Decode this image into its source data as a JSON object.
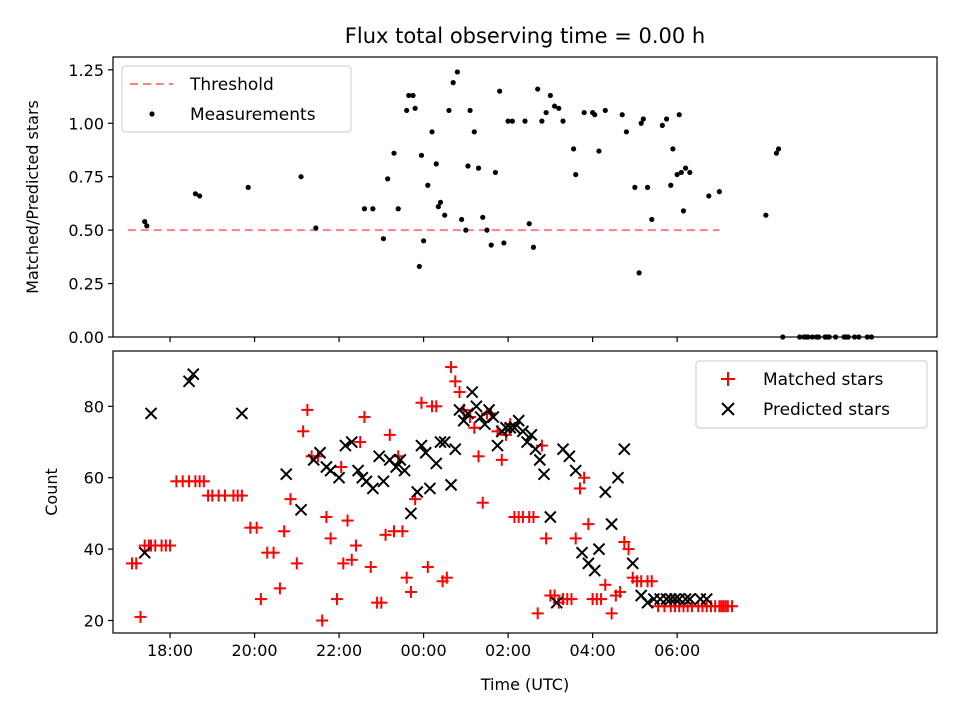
{
  "figure": {
    "title": "Flux total observing time = 0.00 h"
  },
  "chart_data": [
    {
      "type": "scatter",
      "ylabel": "Matched/Predicted stars",
      "xlabel": "",
      "ylim": [
        0,
        1.31
      ],
      "xlim": [
        -7.35,
        12.15
      ],
      "grid": false,
      "legend_position": "top-left",
      "yticks": [
        0,
        0.25,
        0.5,
        0.75,
        1.0,
        1.25
      ],
      "ytick_labels": [
        "0.00",
        "0.25",
        "0.50",
        "0.75",
        "1.00",
        "1.25"
      ],
      "threshold": {
        "name": "Threshold",
        "value": 0.5,
        "x_range": [
          -7.0,
          7.0
        ],
        "color": "#ff8080"
      },
      "series": [
        {
          "name": "Measurements",
          "color": "#000000",
          "x": [
            -6.6,
            -6.55,
            -5.4,
            -5.3,
            -4.15,
            -2.9,
            -2.55,
            -1.4,
            -1.2,
            -0.95,
            -0.85,
            -0.7,
            -0.6,
            -0.4,
            -0.35,
            -0.25,
            -0.2,
            -0.1,
            -0.05,
            0.0,
            0.1,
            0.2,
            0.3,
            0.35,
            0.4,
            0.5,
            0.6,
            0.7,
            0.8,
            0.9,
            1.0,
            1.05,
            1.1,
            1.2,
            1.3,
            1.4,
            1.5,
            1.6,
            1.7,
            1.8,
            1.9,
            2.0,
            2.1,
            2.4,
            2.5,
            2.6,
            2.7,
            2.8,
            2.9,
            3.0,
            3.1,
            3.2,
            3.3,
            3.55,
            3.6,
            3.8,
            4.0,
            4.05,
            4.15,
            4.3,
            4.7,
            4.8,
            5.0,
            5.1,
            5.15,
            5.2,
            5.3,
            5.4,
            5.65,
            5.75,
            5.85,
            5.9,
            6.0,
            6.05,
            6.1,
            6.15,
            6.2,
            6.3,
            6.75,
            7.0,
            8.1,
            8.35,
            8.4,
            8.5,
            8.9,
            9.0,
            9.05,
            9.1,
            9.2,
            9.3,
            9.35,
            9.5,
            9.55,
            9.6,
            9.75,
            9.95,
            10.0,
            10.05,
            10.2,
            10.3,
            10.5,
            10.6
          ],
          "y": [
            0.54,
            0.52,
            0.67,
            0.66,
            0.7,
            0.75,
            0.51,
            0.6,
            0.6,
            0.46,
            0.74,
            0.86,
            0.6,
            1.06,
            1.13,
            1.13,
            1.07,
            0.33,
            0.85,
            0.45,
            0.71,
            0.96,
            0.81,
            0.61,
            0.63,
            0.57,
            1.06,
            1.19,
            1.24,
            0.55,
            0.5,
            0.8,
            1.06,
            0.96,
            0.79,
            0.56,
            0.5,
            0.43,
            0.77,
            1.15,
            0.44,
            1.01,
            1.01,
            1.01,
            0.53,
            0.42,
            1.16,
            1.01,
            1.05,
            1.13,
            1.08,
            1.07,
            1.01,
            0.88,
            0.76,
            1.05,
            1.05,
            1.04,
            0.87,
            1.06,
            1.04,
            0.96,
            0.7,
            0.3,
            1.0,
            1.02,
            0.7,
            0.55,
            0.99,
            1.02,
            0.71,
            0.88,
            0.76,
            1.04,
            0.77,
            0.59,
            0.79,
            0.77,
            0.66,
            0.68,
            0.57,
            0.86,
            0.88,
            0,
            0,
            0,
            0,
            0,
            0,
            0,
            0,
            0,
            0,
            0,
            0,
            0,
            0,
            0,
            0,
            0,
            0,
            0
          ]
        }
      ]
    },
    {
      "type": "scatter",
      "xlabel": "Time (UTC)",
      "ylabel": "Count",
      "ylim": [
        16.5,
        95.5
      ],
      "xlim": [
        -7.35,
        12.15
      ],
      "grid": false,
      "legend_position": "top-right",
      "yticks": [
        20,
        40,
        60,
        80
      ],
      "ytick_labels": [
        "20",
        "40",
        "60",
        "80"
      ],
      "xticks": [
        -6,
        -4,
        -2,
        0,
        2,
        4,
        6
      ],
      "xtick_labels": [
        "18:00",
        "20:00",
        "22:00",
        "00:00",
        "02:00",
        "04:00",
        "06:00"
      ],
      "series": [
        {
          "name": "Matched stars",
          "marker": "plus",
          "color": "#ff0000",
          "x": [
            -6.9,
            -6.8,
            -6.7,
            -6.6,
            -6.5,
            -6.45,
            -6.35,
            -6.2,
            -6.1,
            -6.0,
            -5.85,
            -5.7,
            -5.55,
            -5.4,
            -5.3,
            -5.2,
            -5.1,
            -5.0,
            -4.85,
            -4.7,
            -4.5,
            -4.4,
            -4.3,
            -4.1,
            -3.95,
            -3.85,
            -3.7,
            -3.55,
            -3.4,
            -3.3,
            -3.15,
            -3.0,
            -2.85,
            -2.75,
            -2.65,
            -2.5,
            -2.4,
            -2.3,
            -2.2,
            -2.05,
            -1.95,
            -1.9,
            -1.8,
            -1.7,
            -1.6,
            -1.5,
            -1.4,
            -1.25,
            -1.1,
            -1.0,
            -0.9,
            -0.8,
            -0.7,
            -0.6,
            -0.5,
            -0.4,
            -0.3,
            -0.2,
            -0.05,
            0.1,
            0.2,
            0.3,
            0.45,
            0.55,
            0.65,
            0.75,
            0.85,
            0.95,
            1.1,
            1.2,
            1.3,
            1.4,
            1.5,
            1.6,
            1.75,
            1.85,
            1.95,
            2.05,
            2.15,
            2.25,
            2.35,
            2.5,
            2.6,
            2.7,
            2.8,
            2.9,
            3.0,
            3.1,
            3.2,
            3.3,
            3.4,
            3.5,
            3.6,
            3.7,
            3.8,
            3.9,
            4.0,
            4.1,
            4.2,
            4.3,
            4.45,
            4.55,
            4.65,
            4.75,
            4.85,
            4.95,
            5.05,
            5.15,
            5.3,
            5.4,
            5.55,
            5.7,
            5.85,
            5.95,
            6.05,
            6.15,
            6.25,
            6.35,
            6.5,
            6.6,
            6.7,
            6.8,
            6.9,
            7.0,
            7.05,
            7.1,
            7.15,
            7.2,
            7.3
          ],
          "y": [
            36,
            36,
            21,
            41,
            41,
            41,
            41,
            41,
            41,
            41,
            59,
            59,
            59,
            59,
            59,
            59,
            55,
            55,
            55,
            55,
            55,
            55,
            55,
            46,
            46,
            26,
            39,
            39,
            29,
            45,
            54,
            36,
            73,
            79,
            66,
            66,
            20,
            49,
            43,
            26,
            63,
            36,
            48,
            37,
            41,
            70,
            77,
            35,
            25,
            25,
            44,
            72,
            45,
            66,
            45,
            32,
            28,
            54,
            81,
            35,
            80,
            80,
            31,
            32,
            91,
            87,
            84,
            79,
            77,
            74,
            66,
            53,
            78,
            78,
            73,
            65,
            72,
            75,
            49,
            49,
            49,
            49,
            49,
            22,
            69,
            43,
            27,
            27,
            25,
            26,
            26,
            26,
            43,
            57,
            60,
            47,
            26,
            26,
            26,
            30,
            22,
            27,
            28,
            42,
            40,
            32,
            31,
            31,
            31,
            31,
            24,
            24,
            24,
            24,
            24,
            24,
            24,
            24,
            24,
            24,
            24,
            24,
            24,
            24,
            24,
            24,
            24,
            24,
            24
          ],
          "type_hint": "plus markers"
        },
        {
          "name": "Predicted stars",
          "marker": "x",
          "color": "#000000",
          "x": [
            -6.6,
            -6.45,
            -5.55,
            -5.45,
            -4.3,
            -3.25,
            -2.9,
            -2.6,
            -2.45,
            -2.3,
            -2.2,
            -2.0,
            -1.85,
            -1.7,
            -1.55,
            -1.45,
            -1.35,
            -1.2,
            -1.05,
            -0.95,
            -0.8,
            -0.65,
            -0.55,
            -0.45,
            -0.3,
            -0.15,
            -0.05,
            0.05,
            0.15,
            0.3,
            0.4,
            0.5,
            0.65,
            0.75,
            0.85,
            0.95,
            1.05,
            1.15,
            1.25,
            1.35,
            1.45,
            1.55,
            1.65,
            1.75,
            1.85,
            1.95,
            2.05,
            2.15,
            2.25,
            2.35,
            2.45,
            2.55,
            2.65,
            2.75,
            2.85,
            3.0,
            3.15,
            3.3,
            3.45,
            3.6,
            3.75,
            3.9,
            4.05,
            4.15,
            4.3,
            4.45,
            4.6,
            4.75,
            4.95,
            5.15,
            5.3,
            5.45,
            5.6,
            5.75,
            5.85,
            5.95,
            6.05,
            6.2,
            6.3,
            6.55,
            6.7
          ],
          "y": [
            39,
            78,
            87,
            89,
            78,
            61,
            51,
            65,
            67,
            63,
            62,
            60,
            69,
            70,
            62,
            60,
            59,
            57,
            66,
            59,
            65,
            63,
            65,
            62,
            50,
            56,
            69,
            67,
            57,
            64,
            70,
            70,
            58,
            68,
            79,
            76,
            78,
            84,
            80,
            77,
            75,
            79,
            77,
            69,
            73,
            74,
            74,
            74,
            76,
            73,
            70,
            72,
            68,
            65,
            61,
            49,
            25,
            68,
            66,
            62,
            39,
            36,
            34,
            40,
            56,
            47,
            60,
            68,
            36,
            27,
            25,
            26,
            26,
            26,
            26,
            26,
            26,
            26,
            26,
            26,
            26
          ]
        }
      ]
    }
  ]
}
